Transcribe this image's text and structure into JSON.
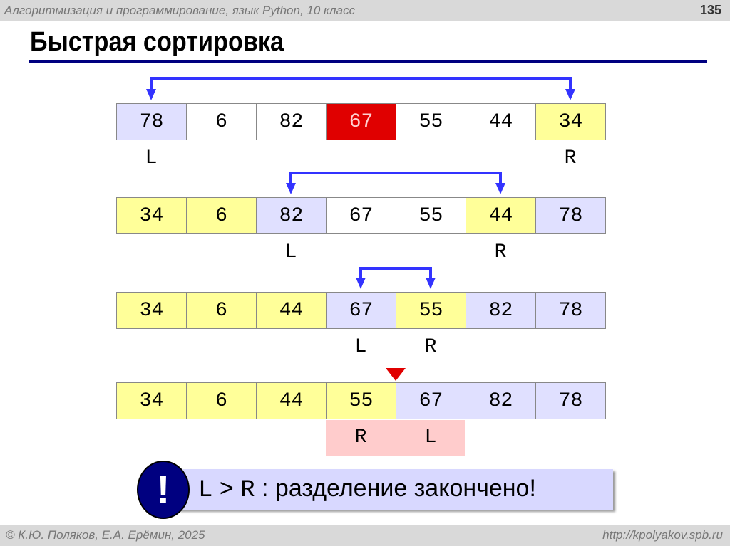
{
  "header": {
    "subtitle": "Алгоритмизация и программирование, язык Python, 10 класс",
    "page": "135"
  },
  "title": "Быстрая сортировка",
  "rows": [
    {
      "values": [
        "78",
        "6",
        "82",
        "67",
        "55",
        "44",
        "34"
      ],
      "states": [
        "l",
        "w",
        "w",
        "p",
        "w",
        "w",
        "y"
      ],
      "L": "L",
      "R": "R",
      "L_index": 0,
      "R_index": 6
    },
    {
      "values": [
        "34",
        "6",
        "82",
        "67",
        "55",
        "44",
        "78"
      ],
      "states": [
        "y",
        "y",
        "l",
        "w",
        "w",
        "y",
        "l"
      ],
      "L": "L",
      "R": "R",
      "L_index": 2,
      "R_index": 5
    },
    {
      "values": [
        "34",
        "6",
        "44",
        "67",
        "55",
        "82",
        "78"
      ],
      "states": [
        "y",
        "y",
        "y",
        "l",
        "y",
        "l",
        "l"
      ],
      "L": "L",
      "R": "R",
      "L_index": 3,
      "R_index": 4
    },
    {
      "values": [
        "34",
        "6",
        "44",
        "55",
        "67",
        "82",
        "78"
      ],
      "states": [
        "y",
        "y",
        "y",
        "y",
        "l",
        "l",
        "l"
      ],
      "R": "R",
      "L": "L",
      "R_index": 3,
      "L_index": 4
    }
  ],
  "note": {
    "icon": "exclamation-icon",
    "mark": "!",
    "lhs": "L",
    "op": ">",
    "rhs": "R",
    "text": ": разделение закончено!"
  },
  "footer": {
    "left": "© К.Ю. Поляков, Е.А. Ерёмин, 2025",
    "right": "http://kpolyakov.spb.ru"
  },
  "colors": {
    "pivot": "#e00000",
    "left_part": "#ffff99",
    "right_part": "#e0e0ff",
    "arrow": "#3333ff",
    "split_marker": "#e00000",
    "rule": "#000080"
  }
}
